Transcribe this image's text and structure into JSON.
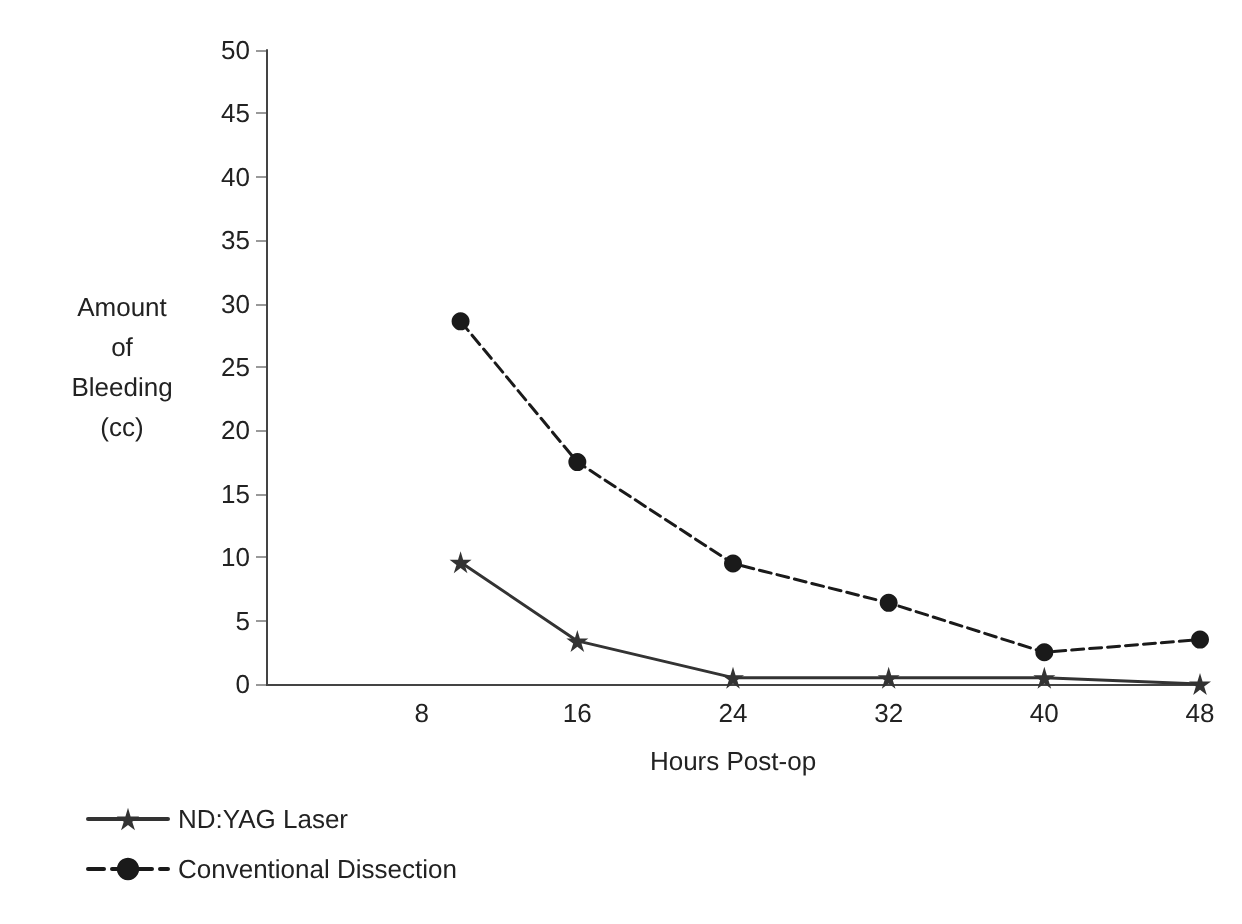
{
  "chart_data": {
    "type": "line",
    "xlabel": "Hours Post-op",
    "ylabel": "Amount of Bleeding (cc)",
    "xlim": [
      0,
      48
    ],
    "xticks": [
      8,
      16,
      24,
      32,
      40,
      48
    ],
    "ylim": [
      0,
      50
    ],
    "yticks": [
      0,
      5,
      10,
      15,
      20,
      25,
      30,
      35,
      40,
      45,
      50
    ],
    "grid": false,
    "legend": "bottom left",
    "series": [
      {
        "name": "ND:YAG Laser",
        "color": "#333333",
        "marker": "star",
        "line_style": "solid",
        "x": [
          10,
          16,
          24,
          32,
          40,
          48
        ],
        "values": [
          9.6,
          3.4,
          0.5,
          0.5,
          0.5,
          0
        ]
      },
      {
        "name": "Conventional Dissection",
        "color": "#1a1a1a",
        "marker": "circle",
        "line_style": "dashed",
        "x": [
          10,
          16,
          24,
          32,
          40,
          48
        ],
        "values": [
          28.6,
          17.5,
          9.5,
          6.4,
          2.5,
          3.5
        ]
      }
    ]
  }
}
